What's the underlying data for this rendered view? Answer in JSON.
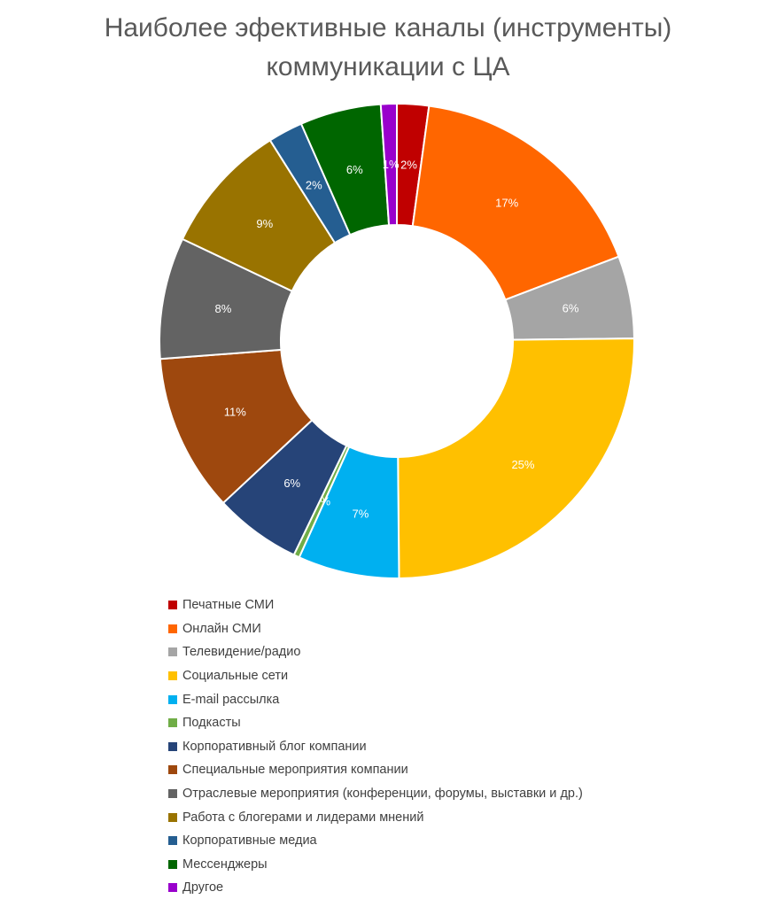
{
  "chart_data": {
    "type": "donut",
    "title_lines": [
      "Наиболее эфективные каналы (инструменты)",
      "коммуникации с ЦА"
    ],
    "legend_position": "bottom",
    "categories": [
      "Печатные СМИ",
      "Онлайн СМИ",
      "Телевидение/радио",
      "Социальные сети",
      "E-mail рассылка",
      "Подкасты",
      "Корпоративный блог компании",
      "Специальные мероприятия компании",
      "Отраслевые мероприятия (конференции, форумы, выставки и др.)",
      "Работа с блогерами и лидерами мнений",
      "Корпоративные медиа",
      "Мессенджеры",
      "Другое"
    ],
    "values": [
      2.2,
      17.3,
      5.7,
      25.4,
      7.0,
      0.4,
      6.0,
      10.9,
      8.4,
      9.1,
      2.4,
      5.6,
      1.1
    ],
    "labels": [
      "2%",
      "17%",
      "6%",
      "25%",
      "7%",
      "0%",
      "6%",
      "11%",
      "8%",
      "9%",
      "2%",
      "6%",
      "1%"
    ],
    "colors": [
      "#C00000",
      "#FF6600",
      "#A5A5A5",
      "#FFC000",
      "#00B0F0",
      "#70AD47",
      "#264478",
      "#9E480E",
      "#636363",
      "#997300",
      "#255E91",
      "#006600",
      "#9900CC"
    ]
  }
}
